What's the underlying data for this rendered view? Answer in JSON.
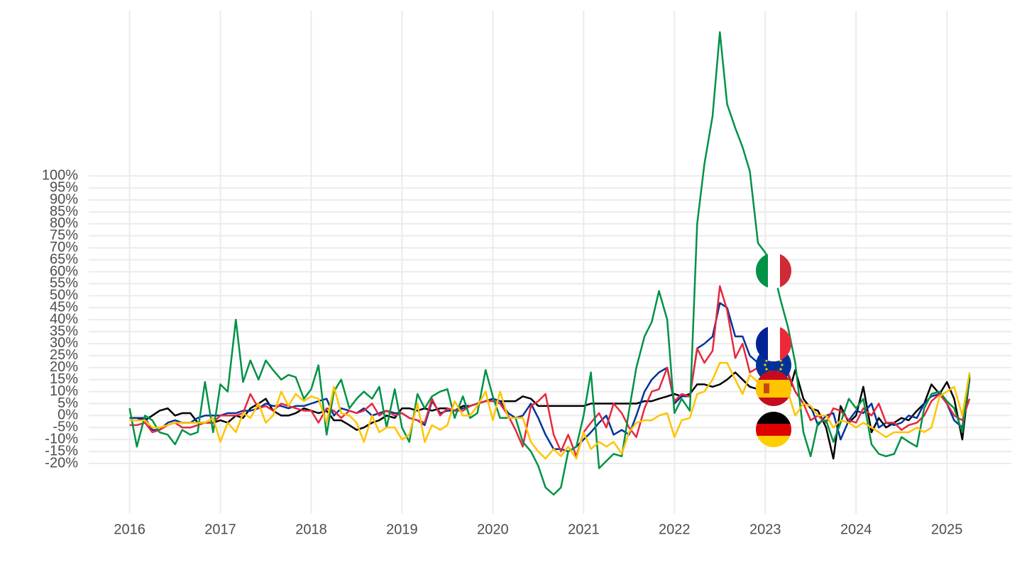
{
  "chart_data": {
    "type": "line",
    "x": [
      2016,
      2016.08,
      2016.17,
      2016.25,
      2016.33,
      2016.42,
      2016.5,
      2016.58,
      2016.67,
      2016.75,
      2016.83,
      2016.92,
      2017,
      2017.08,
      2017.17,
      2017.25,
      2017.33,
      2017.42,
      2017.5,
      2017.58,
      2017.67,
      2017.75,
      2017.83,
      2017.92,
      2018,
      2018.08,
      2018.17,
      2018.25,
      2018.33,
      2018.42,
      2018.5,
      2018.58,
      2018.67,
      2018.75,
      2018.83,
      2018.92,
      2019,
      2019.08,
      2019.17,
      2019.25,
      2019.33,
      2019.42,
      2019.5,
      2019.58,
      2019.67,
      2019.75,
      2019.83,
      2019.92,
      2020,
      2020.08,
      2020.17,
      2020.25,
      2020.33,
      2020.42,
      2020.5,
      2020.58,
      2020.67,
      2020.75,
      2020.83,
      2020.92,
      2021,
      2021.08,
      2021.17,
      2021.25,
      2021.33,
      2021.42,
      2021.5,
      2021.58,
      2021.67,
      2021.75,
      2021.83,
      2021.92,
      2022,
      2022.08,
      2022.17,
      2022.25,
      2022.33,
      2022.42,
      2022.5,
      2022.58,
      2022.67,
      2022.75,
      2022.83,
      2022.92,
      2023,
      2023.08,
      2023.17,
      2023.25,
      2023.33,
      2023.42,
      2023.5,
      2023.58,
      2023.67,
      2023.75,
      2023.83,
      2023.92,
      2024,
      2024.08,
      2024.17,
      2024.25,
      2024.33,
      2024.42,
      2024.5,
      2024.58,
      2024.67,
      2024.75,
      2024.83,
      2024.92,
      2025,
      2025.08,
      2025.17,
      2025.25
    ],
    "series": [
      {
        "color": "#000000",
        "values": [
          -1,
          -1,
          -2,
          0,
          2,
          3,
          0,
          1,
          1,
          -3,
          -3,
          -3,
          -2,
          -3,
          0,
          -1,
          3,
          5,
          7,
          2,
          0,
          0,
          1,
          3,
          2,
          1,
          2,
          -2,
          -2,
          -4,
          -6,
          -5,
          -3,
          -2,
          0,
          -1,
          3,
          3,
          2,
          3,
          2,
          3,
          3,
          2,
          4,
          4,
          5,
          6,
          7,
          6,
          6,
          6,
          8,
          7,
          4,
          4,
          4,
          4,
          4,
          4,
          4,
          5,
          5,
          5,
          5,
          5,
          5,
          5,
          6,
          6,
          7,
          8,
          9,
          8,
          9,
          13,
          13,
          12,
          13,
          15,
          18,
          15,
          12,
          11,
          10,
          9,
          8,
          8,
          19,
          7,
          3,
          2,
          -5,
          -18,
          4,
          -3,
          0,
          12,
          -7,
          -1,
          -5,
          -3,
          -1,
          -2,
          2,
          5,
          13,
          9,
          14,
          7,
          -10,
          16
        ]
      },
      {
        "color": "#003399",
        "values": [
          -1,
          -1,
          -1,
          -6,
          -6,
          -3,
          -2,
          -3,
          -3,
          -1,
          0,
          0,
          0,
          1,
          1,
          2,
          2,
          3,
          5,
          4,
          4,
          3,
          4,
          4,
          5,
          6,
          7,
          0,
          3,
          2,
          1,
          3,
          0,
          1,
          2,
          1,
          1,
          -1,
          -2,
          -4,
          6,
          1,
          2,
          2,
          3,
          4,
          5,
          6,
          7,
          6,
          1,
          -1,
          0,
          5,
          -1,
          -8,
          -14,
          -14,
          -15,
          -13,
          -10,
          -7,
          -3,
          0,
          -8,
          -6,
          -8,
          0,
          10,
          15,
          18,
          20,
          5,
          8,
          8,
          28,
          30,
          33,
          47,
          45,
          33,
          33,
          25,
          22,
          24,
          20,
          18,
          17,
          10,
          5,
          4,
          -4,
          0,
          1,
          -10,
          -2,
          2,
          1,
          5,
          -5,
          -3,
          -4,
          -3,
          0,
          -1,
          5,
          8,
          9,
          5,
          -2,
          -5,
          15
        ]
      },
      {
        "color": "#e8283c",
        "values": [
          -4,
          -4,
          -3,
          -7,
          -6,
          -4,
          -3,
          -5,
          -5,
          -4,
          -3,
          -3,
          0,
          0,
          0,
          1,
          9,
          3,
          4,
          2,
          5,
          4,
          3,
          2,
          2,
          -3,
          3,
          2,
          -1,
          2,
          1,
          2,
          5,
          0,
          2,
          0,
          1,
          -1,
          -2,
          -3,
          7,
          0,
          3,
          2,
          2,
          4,
          5,
          6,
          6,
          5,
          0,
          -6,
          -13,
          4,
          6,
          9,
          -8,
          -15,
          -8,
          -17,
          -7,
          -3,
          1,
          -5,
          5,
          1,
          -5,
          -9,
          3,
          10,
          11,
          20,
          6,
          9,
          8,
          28,
          22,
          27,
          54,
          44,
          24,
          30,
          18,
          20,
          22,
          18,
          17,
          18,
          10,
          5,
          -2,
          0,
          -3,
          3,
          2,
          -2,
          -3,
          3,
          0,
          5,
          -3,
          -3,
          -6,
          -4,
          -3,
          0,
          6,
          9,
          5,
          0,
          -2,
          7
        ]
      },
      {
        "color": "#009246",
        "values": [
          3,
          -13,
          0,
          -2,
          -7,
          -8,
          -12,
          -6,
          -8,
          -7,
          14,
          -7,
          13,
          10,
          40,
          14,
          23,
          15,
          23,
          19,
          15,
          17,
          16,
          7,
          11,
          21,
          -8,
          10,
          15,
          3,
          7,
          10,
          7,
          12,
          -5,
          11,
          -5,
          -11,
          9,
          3,
          8,
          10,
          11,
          -1,
          8,
          -1,
          1,
          19,
          8,
          -1,
          -1,
          -1,
          -11,
          -15,
          -21,
          -30,
          -33,
          -30,
          -15,
          -13,
          0,
          18,
          -22,
          -19,
          -16,
          -17,
          2,
          20,
          33,
          39,
          52,
          40,
          1,
          7,
          2,
          80,
          105,
          125,
          160,
          130,
          120,
          112,
          102,
          72,
          68,
          62,
          48,
          37,
          22,
          -7,
          -17,
          -3,
          -2,
          -11,
          -3,
          7,
          3,
          7,
          -12,
          -16,
          -17,
          -16,
          -9,
          -11,
          -13,
          3,
          9,
          10,
          6,
          3,
          -7,
          17
        ]
      },
      {
        "color": "#ffc400",
        "values": [
          -2,
          -2,
          -2,
          -5,
          -5,
          -4,
          -3,
          -3,
          -3,
          -3,
          -3,
          -1,
          -11,
          -3,
          -7,
          1,
          -1,
          5,
          -3,
          0,
          10,
          4,
          9,
          6,
          8,
          7,
          -3,
          12,
          1,
          0,
          -3,
          -11,
          0,
          -7,
          -5,
          -5,
          -10,
          -8,
          5,
          -11,
          -4,
          -6,
          -4,
          6,
          0,
          0,
          4,
          10,
          -2,
          10,
          -1,
          -1,
          -1,
          -11,
          -15,
          -18,
          -14,
          -17,
          -13,
          -18,
          -7,
          -14,
          -11,
          -13,
          -11,
          -16,
          -7,
          -3,
          -2,
          -2,
          0,
          1,
          -9,
          -2,
          -1,
          9,
          10,
          15,
          22,
          22,
          15,
          9,
          17,
          14,
          15,
          14,
          10,
          10,
          0,
          5,
          4,
          0,
          0,
          -5,
          -2,
          -3,
          -5,
          -3,
          -5,
          -7,
          -9,
          -7,
          -7,
          -7,
          -5,
          -7,
          -5,
          8,
          10,
          12,
          0,
          18
        ]
      }
    ],
    "xlim": [
      2015.55,
      2025.71
    ],
    "xticks": [
      2016,
      2017,
      2018,
      2019,
      2020,
      2021,
      2022,
      2023,
      2024,
      2025
    ],
    "ylim": [
      -41,
      169
    ],
    "yticks": [
      {
        "value": -20,
        "label": "-20%"
      },
      {
        "value": -15,
        "label": "-15%"
      },
      {
        "value": -10,
        "label": "-10%"
      },
      {
        "value": -5,
        "label": "-5%"
      },
      {
        "value": 0,
        "label": "0%"
      },
      {
        "value": 5,
        "label": "5%"
      },
      {
        "value": 10,
        "label": "10%"
      },
      {
        "value": 15,
        "label": "15%"
      },
      {
        "value": 20,
        "label": "20%"
      },
      {
        "value": 25,
        "label": "25%"
      },
      {
        "value": 30,
        "label": "30%"
      },
      {
        "value": 35,
        "label": "35%"
      },
      {
        "value": 40,
        "label": "40%"
      },
      {
        "value": 45,
        "label": "45%"
      },
      {
        "value": 50,
        "label": "50%"
      },
      {
        "value": 55,
        "label": "55%"
      },
      {
        "value": 60,
        "label": "60%"
      },
      {
        "value": 65,
        "label": "65%"
      },
      {
        "value": 70,
        "label": "70%"
      },
      {
        "value": 75,
        "label": "75%"
      },
      {
        "value": 80,
        "label": "80%"
      },
      {
        "value": 85,
        "label": "85%"
      },
      {
        "value": 90,
        "label": "90%"
      },
      {
        "value": 95,
        "label": "95%"
      },
      {
        "value": 100,
        "label": "100%"
      }
    ],
    "grid": true
  }
}
